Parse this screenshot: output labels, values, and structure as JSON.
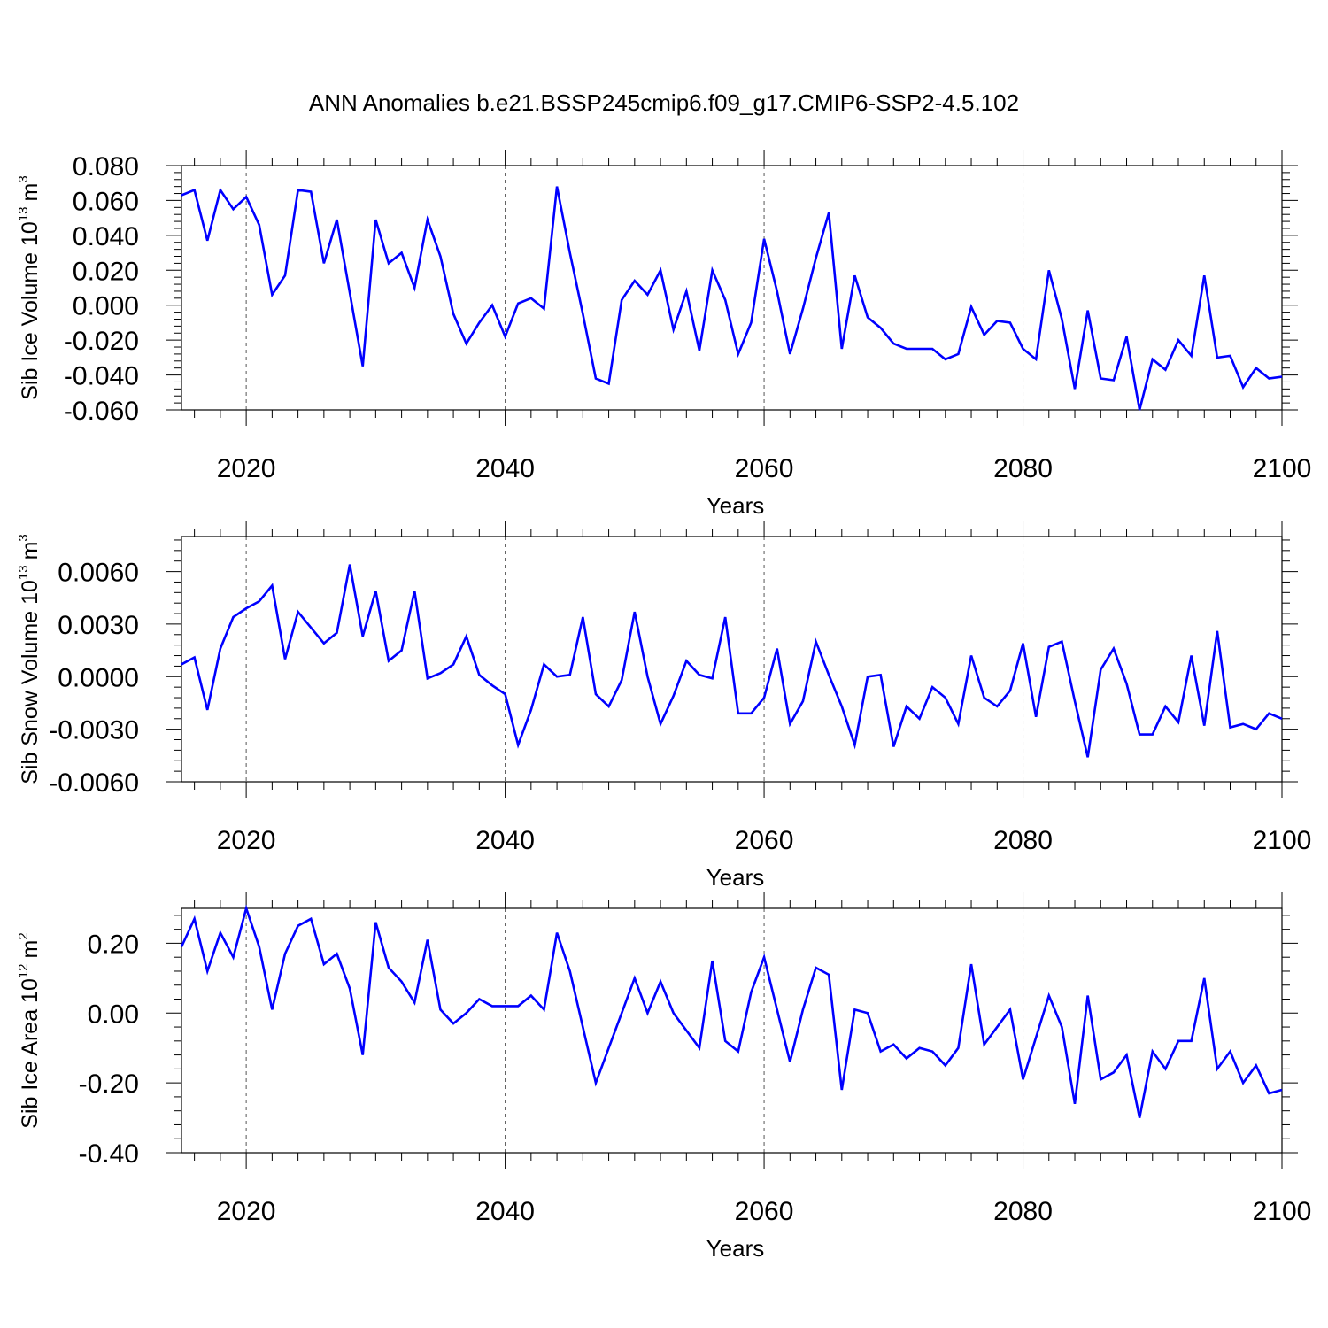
{
  "title": "ANN Anomalies b.e21.BSSP245cmip6.f09_g17.CMIP6-SSP2-4.5.102",
  "line_color": "#0000ff",
  "chart_data": [
    {
      "type": "line",
      "name": "ice-volume",
      "ylabel_prefix": "Sib Ice Volume 10",
      "ylabel_exp": "13",
      "ylabel_unit": "m",
      "ylabel_unit_exp": "3",
      "xlabel": "Years",
      "xlim": [
        2015,
        2100
      ],
      "ylim": [
        -0.06,
        0.08
      ],
      "xticks": [
        2020,
        2040,
        2060,
        2080,
        2100
      ],
      "xtick_labels": [
        "2020",
        "2040",
        "2060",
        "2080",
        "2100"
      ],
      "yticks": [
        -0.06,
        -0.04,
        -0.02,
        0.0,
        0.02,
        0.04,
        0.06,
        0.08
      ],
      "ytick_labels": [
        "-0.060",
        "-0.040",
        "-0.020",
        "0.000",
        "0.020",
        "0.040",
        "0.060",
        "0.080"
      ],
      "x_start": 2015,
      "values": [
        0.063,
        0.066,
        0.037,
        0.066,
        0.055,
        0.062,
        0.046,
        0.006,
        0.017,
        0.066,
        0.065,
        0.024,
        0.049,
        0.007,
        -0.035,
        0.049,
        0.024,
        0.03,
        0.01,
        0.049,
        0.028,
        -0.005,
        -0.022,
        -0.01,
        0.0,
        -0.018,
        0.001,
        0.004,
        -0.002,
        0.068,
        0.03,
        -0.005,
        -0.042,
        -0.045,
        0.003,
        0.014,
        0.006,
        0.02,
        -0.014,
        0.008,
        -0.026,
        0.02,
        0.003,
        -0.028,
        -0.01,
        0.038,
        0.008,
        -0.028,
        -0.002,
        0.027,
        0.053,
        -0.025,
        0.017,
        -0.007,
        -0.013,
        -0.022,
        -0.025,
        -0.025,
        -0.025,
        -0.031,
        -0.028,
        -0.001,
        -0.017,
        -0.009,
        -0.01,
        -0.025,
        -0.031,
        0.02,
        -0.008,
        -0.048,
        -0.003,
        -0.042,
        -0.043,
        -0.018,
        -0.06,
        -0.031,
        -0.037,
        -0.02,
        -0.029,
        0.017,
        -0.03,
        -0.029,
        -0.047,
        -0.036,
        -0.042,
        -0.041
      ]
    },
    {
      "type": "line",
      "name": "snow-volume",
      "ylabel_prefix": "Sib Snow Volume 10",
      "ylabel_exp": "13",
      "ylabel_unit": "m",
      "ylabel_unit_exp": "3",
      "xlabel": "Years",
      "xlim": [
        2015,
        2100
      ],
      "ylim": [
        -0.006,
        0.008
      ],
      "xticks": [
        2020,
        2040,
        2060,
        2080,
        2100
      ],
      "xtick_labels": [
        "2020",
        "2040",
        "2060",
        "2080",
        "2100"
      ],
      "yticks": [
        -0.006,
        -0.003,
        0.0,
        0.003,
        0.006
      ],
      "ytick_labels": [
        "-0.0060",
        "-0.0030",
        "0.0000",
        "0.0030",
        "0.0060"
      ],
      "x_start": 2015,
      "values": [
        0.0007,
        0.0011,
        -0.0019,
        0.0016,
        0.0034,
        0.0039,
        0.0043,
        0.0052,
        0.001,
        0.0037,
        0.0028,
        0.0019,
        0.0025,
        0.0064,
        0.0023,
        0.0049,
        0.0009,
        0.0015,
        0.0049,
        -0.0001,
        0.0002,
        0.0007,
        0.0023,
        0.0001,
        -0.0005,
        -0.001,
        -0.0039,
        -0.0019,
        0.0007,
        0.0,
        0.0001,
        0.0034,
        -0.001,
        -0.0017,
        -0.0002,
        0.0037,
        0.0,
        -0.0027,
        -0.0011,
        0.0009,
        0.0001,
        -0.0001,
        0.0034,
        -0.0021,
        -0.0021,
        -0.0012,
        0.0016,
        -0.0027,
        -0.0014,
        0.002,
        0.0001,
        -0.0017,
        -0.0039,
        0.0,
        0.0001,
        -0.004,
        -0.0017,
        -0.0024,
        -0.0006,
        -0.0012,
        -0.0027,
        0.0012,
        -0.0012,
        -0.0017,
        -0.0008,
        0.0019,
        -0.0023,
        0.0017,
        0.002,
        -0.0014,
        -0.0046,
        0.0004,
        0.0016,
        -0.0004,
        -0.0033,
        -0.0033,
        -0.0017,
        -0.0026,
        0.0012,
        -0.0028,
        0.0026,
        -0.0029,
        -0.0027,
        -0.003,
        -0.0021,
        -0.0024
      ]
    },
    {
      "type": "line",
      "name": "ice-area",
      "ylabel_prefix": "Sib Ice Area 10",
      "ylabel_exp": "12",
      "ylabel_unit": "m",
      "ylabel_unit_exp": "2",
      "xlabel": "Years",
      "xlim": [
        2015,
        2100
      ],
      "ylim": [
        -0.4,
        0.3
      ],
      "xticks": [
        2020,
        2040,
        2060,
        2080,
        2100
      ],
      "xtick_labels": [
        "2020",
        "2040",
        "2060",
        "2080",
        "2100"
      ],
      "yticks": [
        -0.4,
        -0.2,
        0.0,
        0.2
      ],
      "ytick_labels": [
        "-0.40",
        "-0.20",
        "0.00",
        "0.20"
      ],
      "x_start": 2015,
      "values": [
        0.19,
        0.27,
        0.12,
        0.23,
        0.16,
        0.3,
        0.19,
        0.01,
        0.17,
        0.25,
        0.27,
        0.14,
        0.17,
        0.07,
        -0.12,
        0.26,
        0.13,
        0.09,
        0.03,
        0.21,
        0.01,
        -0.03,
        0.0,
        0.04,
        0.02,
        0.02,
        0.02,
        0.05,
        0.01,
        0.23,
        0.12,
        -0.04,
        -0.2,
        -0.1,
        0.0,
        0.1,
        0.0,
        0.09,
        0.0,
        -0.05,
        -0.1,
        0.15,
        -0.08,
        -0.11,
        0.06,
        0.16,
        0.01,
        -0.14,
        0.01,
        0.13,
        0.11,
        -0.22,
        0.01,
        0.0,
        -0.11,
        -0.09,
        -0.13,
        -0.1,
        -0.11,
        -0.15,
        -0.1,
        0.14,
        -0.09,
        -0.04,
        0.01,
        -0.19,
        -0.07,
        0.05,
        -0.04,
        -0.26,
        0.05,
        -0.19,
        -0.17,
        -0.12,
        -0.3,
        -0.11,
        -0.16,
        -0.08,
        -0.08,
        0.1,
        -0.16,
        -0.11,
        -0.2,
        -0.15,
        -0.23,
        -0.22
      ]
    }
  ]
}
